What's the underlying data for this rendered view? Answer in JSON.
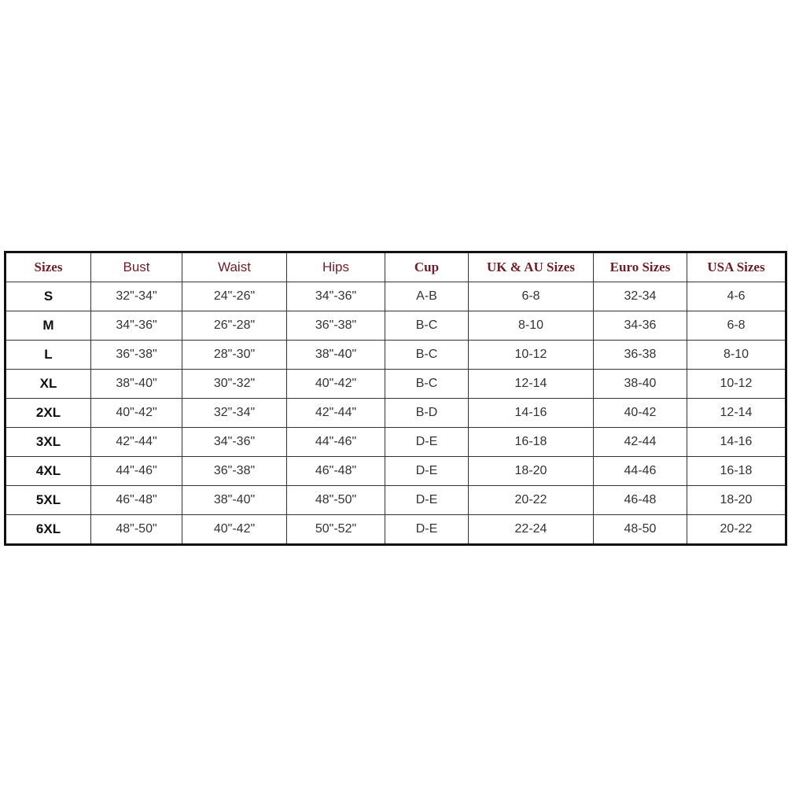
{
  "colors": {
    "header_text": "#6b1f2a",
    "border": "#111111"
  },
  "table": {
    "headers": [
      "Sizes",
      "Bust",
      "Waist",
      "Hips",
      "Cup",
      "UK & AU Sizes",
      "Euro Sizes",
      "USA Sizes"
    ],
    "rows": [
      [
        "S",
        "32\"-34\"",
        "24\"-26\"",
        "34\"-36\"",
        "A-B",
        "6-8",
        "32-34",
        "4-6"
      ],
      [
        "M",
        "34\"-36\"",
        "26\"-28\"",
        "36\"-38\"",
        "B-C",
        "8-10",
        "34-36",
        "6-8"
      ],
      [
        "L",
        "36\"-38\"",
        "28\"-30\"",
        "38\"-40\"",
        "B-C",
        "10-12",
        "36-38",
        "8-10"
      ],
      [
        "XL",
        "38\"-40\"",
        "30\"-32\"",
        "40\"-42\"",
        "B-C",
        "12-14",
        "38-40",
        "10-12"
      ],
      [
        "2XL",
        "40\"-42\"",
        "32\"-34\"",
        "42\"-44\"",
        "B-D",
        "14-16",
        "40-42",
        "12-14"
      ],
      [
        "3XL",
        "42\"-44\"",
        "34\"-36\"",
        "44\"-46\"",
        "D-E",
        "16-18",
        "42-44",
        "14-16"
      ],
      [
        "4XL",
        "44\"-46\"",
        "36\"-38\"",
        "46\"-48\"",
        "D-E",
        "18-20",
        "44-46",
        "16-18"
      ],
      [
        "5XL",
        "46\"-48\"",
        "38\"-40\"",
        "48\"-50\"",
        "D-E",
        "20-22",
        "46-48",
        "18-20"
      ],
      [
        "6XL",
        "48\"-50\"",
        "40\"-42\"",
        "50\"-52\"",
        "D-E",
        "22-24",
        "48-50",
        "20-22"
      ]
    ]
  }
}
